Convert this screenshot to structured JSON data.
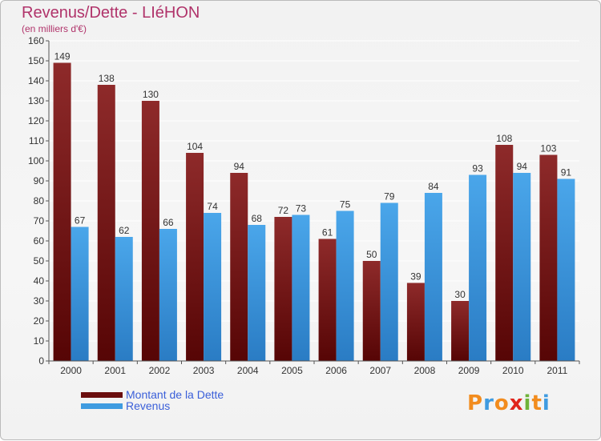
{
  "title": "Revenus/Dette - LIéHON",
  "subtitle": "(en milliers d'€)",
  "colors": {
    "title": "#b0336a",
    "dette": "#7a1c1c",
    "revenus": "#3f9be0"
  },
  "legend": {
    "items": [
      {
        "label": "Montant de la Dette",
        "color": "#6b0e0e"
      },
      {
        "label": "Revenus",
        "color": "#3f9be0"
      }
    ]
  },
  "logo": {
    "letters": [
      "P",
      "r",
      "o",
      "x",
      "i",
      "t",
      "i"
    ],
    "colors": [
      "#f28c1e",
      "#3f9be0",
      "#f28c1e",
      "#e0241b",
      "#6fb33a",
      "#f28c1e",
      "#3f9be0"
    ]
  },
  "chart_data": {
    "type": "bar",
    "categories": [
      "2000",
      "2001",
      "2002",
      "2003",
      "2004",
      "2005",
      "2006",
      "2007",
      "2008",
      "2009",
      "2010",
      "2011"
    ],
    "series": [
      {
        "name": "Montant de la Dette",
        "values": [
          149,
          138,
          130,
          104,
          94,
          72,
          61,
          50,
          39,
          30,
          108,
          103
        ]
      },
      {
        "name": "Revenus",
        "values": [
          67,
          62,
          66,
          74,
          68,
          73,
          75,
          79,
          84,
          93,
          94,
          91
        ]
      }
    ],
    "ylim": [
      0,
      160
    ],
    "yticks": [
      0,
      10,
      20,
      30,
      40,
      50,
      60,
      70,
      80,
      90,
      100,
      110,
      120,
      130,
      140,
      150,
      160
    ],
    "grid": true,
    "legend_position": "bottom-left"
  }
}
